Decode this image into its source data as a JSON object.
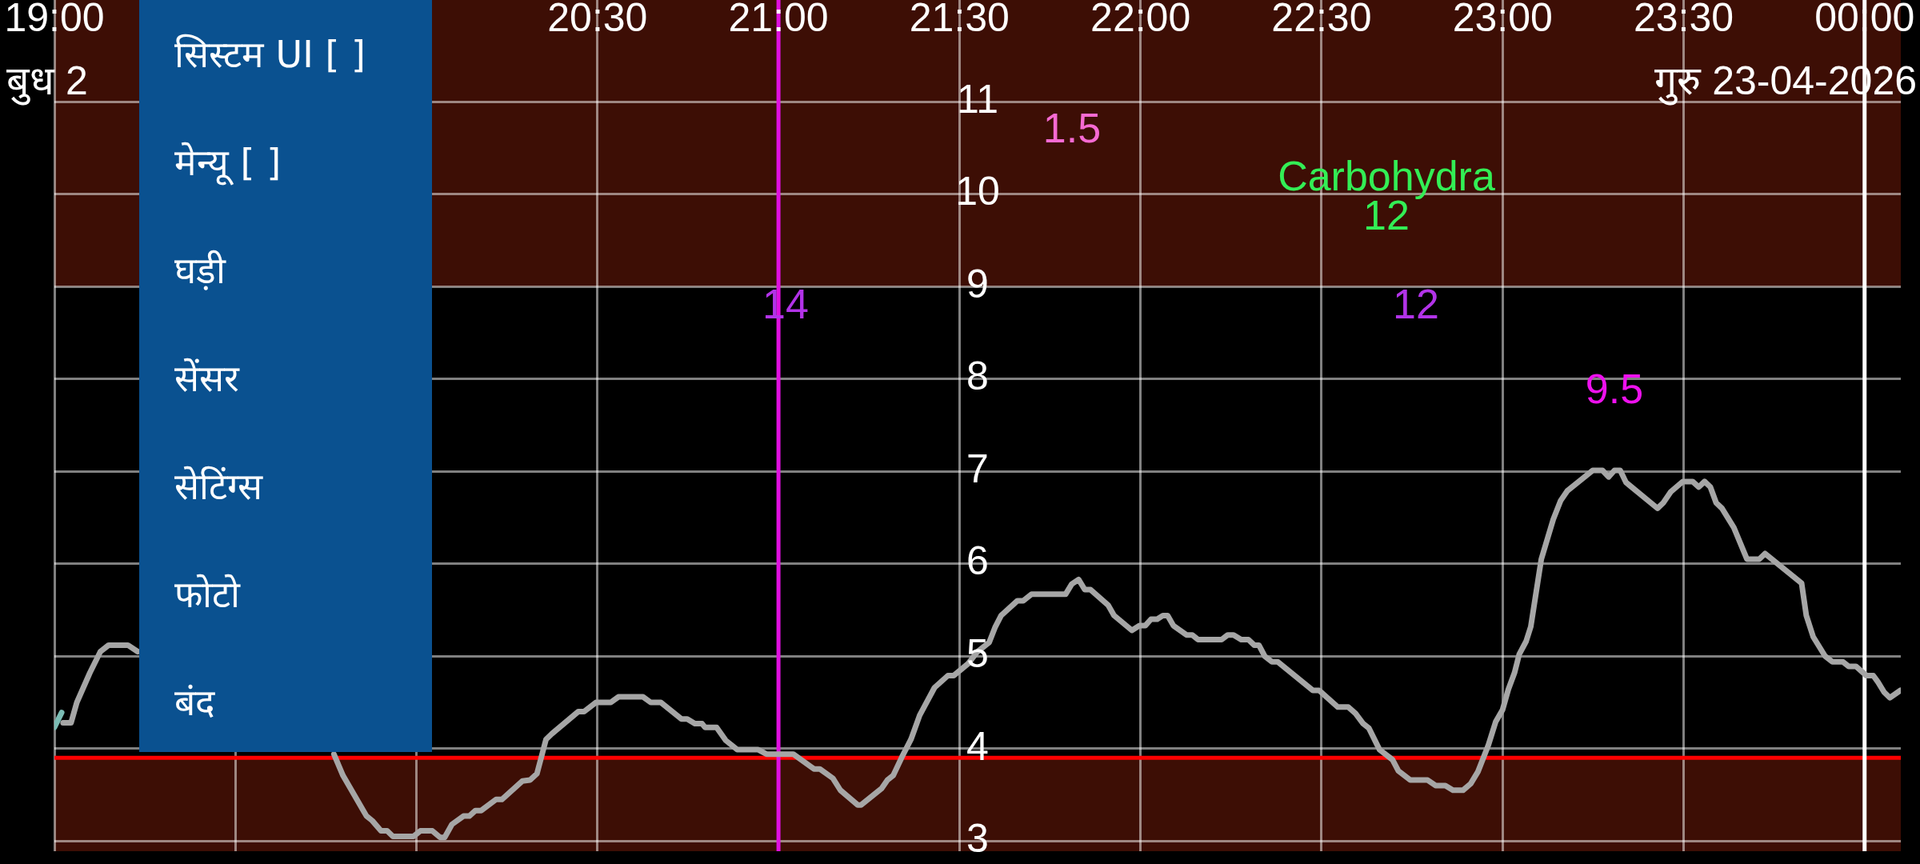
{
  "chart_data": [
    {
      "type": "line",
      "xlim": [
        19,
        24.1
      ],
      "ylim": [
        2.89,
        12.1
      ],
      "xticks": [
        {
          "value": 19,
          "label": "19:00"
        },
        {
          "value": 19.5,
          "label": null
        },
        {
          "value": 20,
          "label": null
        },
        {
          "value": 20.5,
          "label": "20:30"
        },
        {
          "value": 21,
          "label": "21:00"
        },
        {
          "value": 21.5,
          "label": "21:30"
        },
        {
          "value": 22,
          "label": "22:00"
        },
        {
          "value": 22.5,
          "label": "22:30"
        },
        {
          "value": 23,
          "label": "23:00"
        },
        {
          "value": 23.5,
          "label": "23:30"
        },
        {
          "value": 24,
          "label": "00:00"
        }
      ],
      "yticks": [
        3,
        4,
        5,
        6,
        7,
        8,
        9,
        10,
        11
      ],
      "grid": true,
      "marker": "none",
      "line_style": "solid",
      "series": [
        {
          "color": "#7bbdb5",
          "x": [
            19.0,
            19.02
          ],
          "values": [
            4.23,
            4.39
          ]
        },
        {
          "color": "#a6a6a6",
          "x": [
            19.024,
            19.046,
            19.062,
            19.098,
            19.127,
            19.15,
            19.203,
            19.23,
            19.5,
            19.772,
            19.797,
            19.862,
            19.878,
            19.902,
            19.919,
            19.935,
            19.992,
            20.011,
            20.044,
            20.065,
            20.078,
            20.098,
            20.13,
            20.146,
            20.163,
            20.179,
            20.22,
            20.236,
            20.293,
            20.314,
            20.333,
            20.358,
            20.374,
            20.447,
            20.463,
            20.496,
            20.537,
            20.558,
            20.626,
            20.647,
            20.675,
            20.732,
            20.748,
            20.769,
            20.789,
            20.797,
            20.829,
            20.854,
            20.886,
            20.943,
            20.967,
            21.041,
            21.098,
            21.114,
            21.15,
            21.171,
            21.219,
            21.228,
            21.285,
            21.301,
            21.317,
            21.341,
            21.366,
            21.39,
            21.431,
            21.468,
            21.484,
            21.524,
            21.55,
            21.582,
            21.598,
            21.615,
            21.66,
            21.676,
            21.699,
            21.793,
            21.81,
            21.829,
            21.846,
            21.862,
            21.911,
            21.927,
            21.976,
            21.997,
            22.013,
            22.029,
            22.046,
            22.062,
            22.075,
            22.091,
            22.127,
            22.143,
            22.159,
            22.224,
            22.241,
            22.257,
            22.278,
            22.298,
            22.314,
            22.327,
            22.343,
            22.363,
            22.379,
            22.476,
            22.493,
            22.545,
            22.574,
            22.594,
            22.615,
            22.631,
            22.66,
            22.696,
            22.712,
            22.745,
            22.793,
            22.815,
            22.842,
            22.863,
            22.891,
            22.912,
            22.932,
            22.961,
            22.981,
            23.0,
            23.016,
            23.033,
            23.046,
            23.065,
            23.078,
            23.107,
            23.14,
            23.16,
            23.179,
            23.249,
            23.276,
            23.293,
            23.309,
            23.325,
            23.341,
            23.428,
            23.444,
            23.465,
            23.498,
            23.525,
            23.542,
            23.558,
            23.574,
            23.59,
            23.606,
            23.639,
            23.675,
            23.709,
            23.725,
            23.826,
            23.839,
            23.858,
            23.891,
            23.911,
            23.94,
            23.956,
            23.976,
            24.005,
            24.024,
            24.037,
            24.054,
            24.07,
            24.099
          ],
          "values": [
            4.28,
            4.28,
            4.5,
            4.82,
            5.05,
            5.12,
            5.12,
            5.05,
            null,
            3.94,
            3.71,
            3.27,
            3.22,
            3.11,
            3.11,
            3.05,
            3.05,
            3.11,
            3.11,
            3.04,
            3.04,
            3.18,
            3.27,
            3.27,
            3.33,
            3.33,
            3.45,
            3.45,
            3.65,
            3.66,
            3.73,
            4.1,
            4.16,
            4.4,
            4.4,
            4.5,
            4.5,
            4.56,
            4.56,
            4.5,
            4.5,
            4.32,
            4.32,
            4.27,
            4.27,
            4.23,
            4.23,
            4.09,
            3.99,
            3.99,
            3.94,
            3.94,
            3.78,
            3.78,
            3.68,
            3.55,
            3.39,
            3.39,
            3.57,
            3.66,
            3.71,
            3.91,
            4.1,
            4.36,
            4.66,
            4.79,
            4.79,
            4.92,
            5.05,
            5.15,
            5.31,
            5.44,
            5.6,
            5.6,
            5.67,
            5.67,
            5.78,
            5.83,
            5.72,
            5.72,
            5.55,
            5.44,
            5.28,
            5.33,
            5.33,
            5.4,
            5.4,
            5.44,
            5.44,
            5.33,
            5.23,
            5.23,
            5.18,
            5.18,
            5.23,
            5.23,
            5.18,
            5.18,
            5.12,
            5.12,
            5.0,
            4.94,
            4.94,
            4.63,
            4.63,
            4.45,
            4.45,
            4.38,
            4.27,
            4.22,
            3.99,
            3.88,
            3.76,
            3.66,
            3.66,
            3.6,
            3.6,
            3.55,
            3.55,
            3.62,
            3.75,
            4.04,
            4.29,
            4.42,
            4.64,
            4.82,
            5.02,
            5.16,
            5.32,
            6.05,
            6.48,
            6.68,
            6.79,
            7.01,
            7.01,
            6.94,
            7.01,
            7.01,
            6.88,
            6.6,
            6.66,
            6.78,
            6.89,
            6.89,
            6.83,
            6.89,
            6.83,
            6.66,
            6.6,
            6.39,
            6.05,
            6.05,
            6.11,
            5.79,
            5.44,
            5.21,
            5.0,
            4.94,
            4.94,
            4.89,
            4.89,
            4.79,
            4.79,
            4.72,
            4.61,
            4.55,
            4.63
          ]
        }
      ],
      "bands": [
        {
          "axis": "y",
          "from": 9,
          "to": 12.1,
          "color": "#3d0e05"
        },
        {
          "axis": "y",
          "from": 2.89,
          "to": 3.9,
          "color": "#3d0e05"
        }
      ],
      "ref_lines": [
        {
          "axis": "y",
          "value": 3.9,
          "color": "#ff0000"
        },
        {
          "axis": "x",
          "value": 21,
          "color": "#e010e0"
        },
        {
          "axis": "x",
          "value": 24,
          "color": "#ffffff"
        }
      ],
      "annotations": [
        "बुध 2",
        "गुरु 23-04-2026",
        "14",
        "1.5",
        "Carbohydra",
        "12",
        "12",
        "9.5"
      ]
    },
    {
      "type": "other",
      "annotations": [
        "सिस्टम UI [ ]",
        "मेन्यू [ ]",
        "घड़ी",
        "सेंसर",
        "सेटिंग्स",
        "फोटो",
        "बंद"
      ]
    }
  ]
}
